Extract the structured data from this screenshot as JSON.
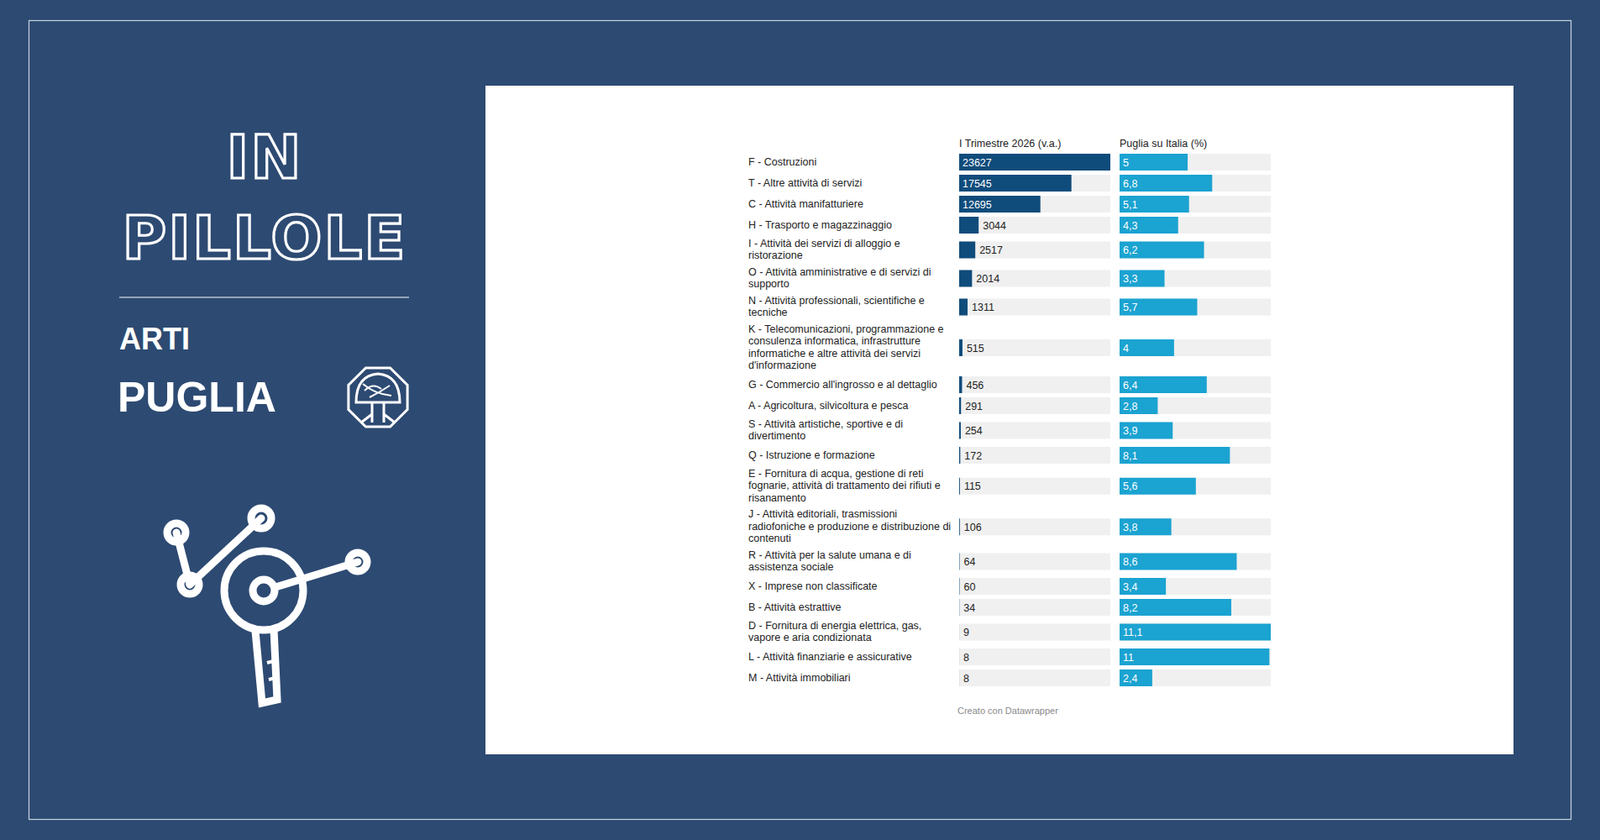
{
  "page": {
    "title": "IN PILLOLE",
    "org": "ARTI",
    "region": "PUGLIA"
  },
  "chart_data": {
    "type": "bar",
    "orientation": "horizontal",
    "data_labels": true,
    "tick_labels": "y",
    "credit": "Creato con Datawrapper",
    "categories": [
      "F - Costruzioni",
      "T - Altre attività di servizi",
      "C - Attività manifatturiere",
      "H - Trasporto e magazzinaggio",
      "I - Attività dei servizi di alloggio e ristorazione",
      "O - Attività amministrative e di servizi di supporto",
      "N - Attività professionali, scientifiche e tecniche",
      "K - Telecomunicazioni, programmazione e consulenza informatica, infrastrutture informatiche e altre attività dei servizi d'informazione",
      "G - Commercio all'ingrosso e al dettaglio",
      "A - Agricoltura, silvicoltura e pesca",
      "S - Attività artistiche, sportive e di divertimento",
      "Q - Istruzione e formazione",
      "E - Fornitura di acqua, gestione di reti fognarie, attività di trattamento dei rifiuti e risanamento",
      "J - Attività editoriali, trasmissioni radiofoniche e produzione e distribuzione di contenuti",
      "R - Attività per la salute umana e di assistenza sociale",
      "X - Imprese non classificate",
      "B - Attività estrattive",
      "D - Fornitura di energia elettrica, gas, vapore e aria condizionata",
      "L - Attività finanziarie e assicurative",
      "M - Attività immobiliari"
    ],
    "series": [
      {
        "name": "I Trimestre 2026 (v.a.)",
        "color": "#0f4c7b",
        "xlim": [
          0,
          23627
        ],
        "values": [
          23627,
          17545,
          12695,
          3044,
          2517,
          2014,
          1311,
          515,
          456,
          291,
          254,
          172,
          115,
          106,
          64,
          60,
          34,
          9,
          8,
          8
        ]
      },
      {
        "name": "Puglia su Italia (%)",
        "color": "#1ba3d1",
        "xlim": [
          0,
          11.1
        ],
        "values": [
          5,
          6.8,
          5.1,
          4.3,
          6.2,
          3.3,
          5.7,
          4,
          6.4,
          2.8,
          3.9,
          8.1,
          5.6,
          3.8,
          8.6,
          3.4,
          8.2,
          11.1,
          11,
          2.4
        ],
        "value_labels": [
          "5",
          "6,8",
          "5,1",
          "4,3",
          "6,2",
          "3,3",
          "5,7",
          "4",
          "6,4",
          "2,8",
          "3,9",
          "8,1",
          "5,6",
          "3,8",
          "8,6",
          "3,4",
          "8,2",
          "11,1",
          "11",
          "2,4"
        ]
      }
    ]
  }
}
